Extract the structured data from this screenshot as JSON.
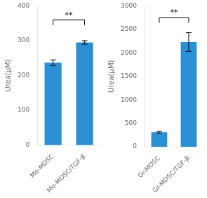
{
  "chart_data": [
    {
      "type": "bar",
      "categories": [
        "Mo-MDSC",
        "Mo-MDSC/TGF-β"
      ],
      "values": [
        237,
        295
      ],
      "errors": [
        8,
        5
      ],
      "color": "#2b8fd4",
      "ylabel": "Urea(μM)",
      "ylim": [
        0,
        400
      ],
      "yticks": [
        0,
        100,
        200,
        300,
        400
      ],
      "grid": false,
      "annotations": [
        {
          "text": "**",
          "y": 360,
          "drop": 15,
          "from": "Mo-MDSC",
          "to": "Mo-MDSC/TGF-β"
        }
      ]
    },
    {
      "type": "bar",
      "categories": [
        "Gr-MDSC",
        "Gr-MDSC/TGF-β"
      ],
      "values": [
        310,
        2230
      ],
      "errors": [
        18,
        200
      ],
      "color": "#2b8fd4",
      "ylabel": "Urea(μM)",
      "ylim": [
        0,
        3000
      ],
      "yticks": [
        0,
        500,
        1000,
        1500,
        2000,
        2500,
        3000
      ],
      "grid": false,
      "annotations": [
        {
          "text": "**",
          "y": 2750,
          "drop": 110,
          "from": "Gr-MDSC",
          "to": "Gr-MDSC/TGF-β"
        }
      ]
    }
  ]
}
